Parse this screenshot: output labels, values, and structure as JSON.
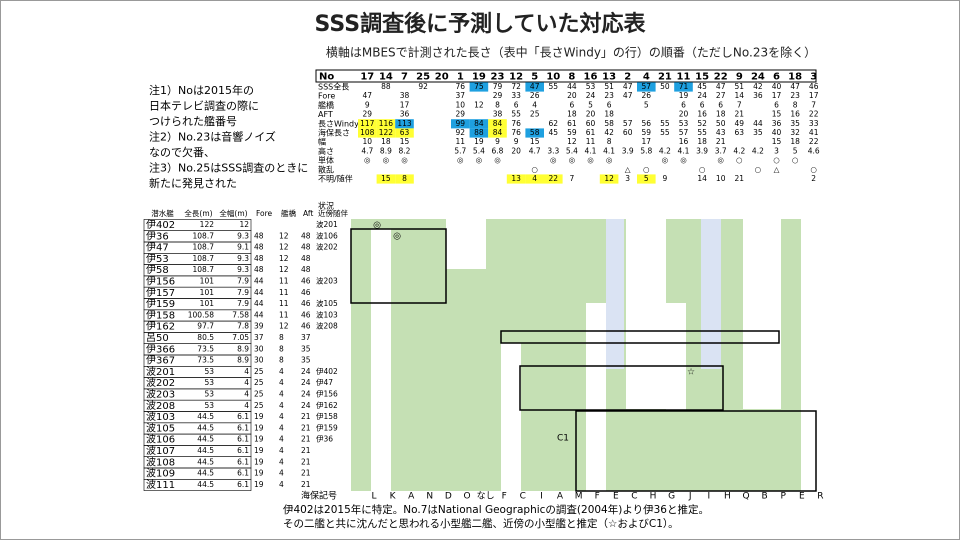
{
  "header": {
    "title": "SSS調査後に予測していた対応表",
    "subtitle": "横軸はMBESで計測された長さ（表中「長さWindy」の行）の順番（ただしNo.23を除く）"
  },
  "notes": [
    "注1）Noは2015年の",
    "日本テレビ調査の際に",
    "つけられた艦番号",
    "注2）No.23は音響ノイズ",
    "なので欠番、",
    "注3）No.25はSSS調査のときに",
    "新たに発見された"
  ],
  "top_table": {
    "header_label": "No",
    "columns": [
      "17",
      "14",
      "7",
      "25",
      "20",
      "1",
      "19",
      "23",
      "12",
      "5",
      "10",
      "8",
      "16",
      "13",
      "2",
      "4",
      "21",
      "11",
      "15",
      "22",
      "9",
      "24",
      "6",
      "18",
      "3"
    ],
    "rows": [
      {
        "label": "SSS全長",
        "values": [
          "",
          "88",
          "",
          "92",
          "",
          "76",
          "75",
          "79",
          "72",
          "47",
          "55",
          "44",
          "53",
          "51",
          "47",
          "57",
          "50",
          "71",
          "45",
          "47",
          "51",
          "42",
          "40",
          "47",
          "46"
        ]
      },
      {
        "label": "Fore",
        "values": [
          "47",
          "",
          "38",
          "",
          "",
          "37",
          "",
          "29",
          "33",
          "26",
          "",
          "20",
          "24",
          "23",
          "47",
          "26",
          "",
          "19",
          "24",
          "27",
          "14",
          "36",
          "17",
          "23",
          "17"
        ]
      },
      {
        "label": "艦橋",
        "values": [
          "9",
          "",
          "17",
          "",
          "",
          "10",
          "12",
          "8",
          "6",
          "4",
          "",
          "6",
          "5",
          "6",
          "",
          "5",
          "",
          "6",
          "6",
          "6",
          "7",
          "",
          "6",
          "8",
          "7"
        ]
      },
      {
        "label": "AFT",
        "values": [
          "29",
          "",
          "36",
          "",
          "",
          "29",
          "",
          "38",
          "55",
          "25",
          "",
          "18",
          "20",
          "18",
          "",
          "",
          "",
          "20",
          "16",
          "18",
          "21",
          "",
          "15",
          "16",
          "22"
        ]
      },
      {
        "label": "長さWindy",
        "values": [
          "117",
          "116",
          "113",
          "",
          "",
          "99",
          "84",
          "84",
          "76",
          "",
          "62",
          "61",
          "60",
          "58",
          "57",
          "56",
          "55",
          "53",
          "52",
          "50",
          "49",
          "44",
          "36",
          "35",
          "33"
        ]
      },
      {
        "label": "海保長さ",
        "values": [
          "108",
          "122",
          "63",
          "",
          "",
          "92",
          "88",
          "84",
          "76",
          "58",
          "45",
          "59",
          "61",
          "42",
          "60",
          "59",
          "55",
          "57",
          "55",
          "43",
          "63",
          "35",
          "40",
          "32",
          "41"
        ]
      },
      {
        "label": "幅",
        "values": [
          "10",
          "18",
          "15",
          "",
          "",
          "11",
          "19",
          "9",
          "9",
          "15",
          "",
          "12",
          "11",
          "8",
          "",
          "17",
          "",
          "16",
          "18",
          "21",
          "",
          "",
          "15",
          "18",
          "22"
        ]
      },
      {
        "label": "高さ",
        "values": [
          "4.7",
          "8.9",
          "8.2",
          "",
          "",
          "5.7",
          "5.4",
          "6.8",
          "20",
          "4.7",
          "3.3",
          "5.4",
          "4.1",
          "4.1",
          "3.9",
          "5.8",
          "4.2",
          "4.1",
          "3.9",
          "3.7",
          "4.2",
          "4.2",
          "3",
          "5",
          "4.6"
        ]
      },
      {
        "label": "単体",
        "values": [
          "◎",
          "◎",
          "◎",
          "",
          "",
          "◎",
          "◎",
          "◎",
          "",
          "",
          "◎",
          "◎",
          "◎",
          "◎",
          "",
          "",
          "◎",
          "◎",
          "",
          "◎",
          "○",
          "",
          "○",
          "○",
          ""
        ]
      },
      {
        "label": "散乱",
        "values": [
          "",
          "",
          "",
          "",
          "",
          "",
          "",
          "",
          "",
          "○",
          "",
          "",
          "",
          "",
          "△",
          "○",
          "",
          "",
          "○",
          "",
          "",
          "○",
          "△",
          "",
          "○"
        ]
      },
      {
        "label": "不明/随伴",
        "values": [
          "",
          "15",
          "8",
          "",
          "",
          "",
          "",
          "",
          "13",
          "4",
          "22",
          "7",
          "",
          "12",
          "3",
          "5",
          "9",
          "",
          "14",
          "10",
          "21",
          "",
          "",
          "",
          "2"
        ]
      },
      {
        "label": "状況",
        "values": [
          "",
          "",
          "",
          "",
          "",
          "",
          "",
          "",
          "",
          "",
          "",
          "",
          "",
          "",
          "",
          "",
          "",
          "",
          "",
          "",
          "",
          "",
          "",
          "",
          ""
        ]
      }
    ]
  },
  "ship_table": {
    "headers": [
      "潜水艦",
      "全長(m)",
      "全幅(m)",
      "Fore",
      "艦橋",
      "Aft",
      "近傍随伴"
    ],
    "rows": [
      [
        "伊402",
        "122",
        "12",
        "",
        "",
        "",
        "波201"
      ],
      [
        "伊36",
        "108.7",
        "9.3",
        "48",
        "12",
        "48",
        "波106"
      ],
      [
        "伊47",
        "108.7",
        "9.1",
        "48",
        "12",
        "48",
        "波202"
      ],
      [
        "伊53",
        "108.7",
        "9.3",
        "48",
        "12",
        "48",
        ""
      ],
      [
        "伊58",
        "108.7",
        "9.3",
        "48",
        "12",
        "48",
        ""
      ],
      [
        "伊156",
        "101",
        "7.9",
        "44",
        "11",
        "46",
        "波203"
      ],
      [
        "伊157",
        "101",
        "7.9",
        "44",
        "11",
        "46",
        ""
      ],
      [
        "伊159",
        "101",
        "7.9",
        "44",
        "11",
        "46",
        "波105"
      ],
      [
        "伊158",
        "100.58",
        "7.58",
        "44",
        "11",
        "46",
        "波103"
      ],
      [
        "伊162",
        "97.7",
        "7.8",
        "39",
        "12",
        "46",
        "波208"
      ],
      [
        "呂50",
        "80.5",
        "7.05",
        "37",
        "8",
        "37",
        ""
      ],
      [
        "伊366",
        "73.5",
        "8.9",
        "30",
        "8",
        "35",
        ""
      ],
      [
        "伊367",
        "73.5",
        "8.9",
        "30",
        "8",
        "35",
        ""
      ],
      [
        "波201",
        "53",
        "4",
        "25",
        "4",
        "24",
        "伊402"
      ],
      [
        "波202",
        "53",
        "4",
        "25",
        "4",
        "24",
        "伊47"
      ],
      [
        "波203",
        "53",
        "4",
        "25",
        "4",
        "24",
        "伊156"
      ],
      [
        "波208",
        "53",
        "4",
        "25",
        "4",
        "24",
        "伊162"
      ],
      [
        "波103",
        "44.5",
        "6.1",
        "19",
        "4",
        "21",
        "伊158"
      ],
      [
        "波105",
        "44.5",
        "6.1",
        "19",
        "4",
        "21",
        "伊159"
      ],
      [
        "波106",
        "44.5",
        "6.1",
        "19",
        "4",
        "21",
        "伊36"
      ],
      [
        "波107",
        "44.5",
        "6.1",
        "19",
        "4",
        "21",
        ""
      ],
      [
        "波108",
        "44.5",
        "6.1",
        "19",
        "4",
        "21",
        ""
      ],
      [
        "波109",
        "44.5",
        "6.1",
        "19",
        "4",
        "21",
        ""
      ],
      [
        "波111",
        "44.5",
        "6.1",
        "19",
        "4",
        "21",
        ""
      ]
    ]
  },
  "grid": {
    "markers": [
      "◎",
      "◎",
      "☆",
      "C1"
    ],
    "axis_label": "海保記号",
    "codes": [
      "L",
      "K",
      "A",
      "N",
      "D",
      "O",
      "なし",
      "F",
      "C",
      "I",
      "A",
      "M",
      "F",
      "E",
      "C",
      "H",
      "G",
      "J",
      "I",
      "H",
      "Q",
      "B",
      "P",
      "E",
      "R"
    ]
  },
  "footer": [
    "伊402は2015年に特定。No.7はNational Geographicの調査(2004年)より伊36と推定。",
    "その二艦と共に沈んだと思われる小型艦二艦、近傍の小型艦と推定（☆およびC1）。"
  ]
}
